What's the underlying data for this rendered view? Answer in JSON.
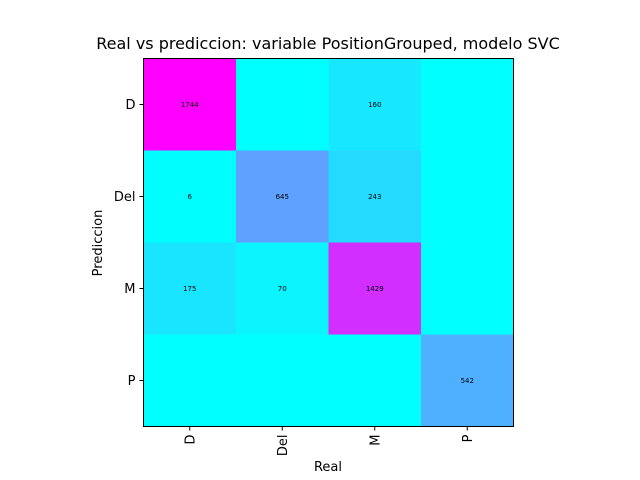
{
  "chart_data": {
    "type": "heatmap",
    "title": "Real vs prediccion: variable PositionGrouped, modelo SVC",
    "xlabel": "Real",
    "ylabel": "Prediccion",
    "x_categories": [
      "D",
      "Del",
      "M",
      "P"
    ],
    "y_categories": [
      "D",
      "Del",
      "M",
      "P"
    ],
    "colormap": "cool",
    "colors": {
      "low": "#00ffff",
      "high": "#ff00ff"
    },
    "matrix": [
      [
        1744,
        0,
        160,
        0
      ],
      [
        6,
        645,
        243,
        0
      ],
      [
        175,
        70,
        1429,
        0
      ],
      [
        0,
        0,
        0,
        542
      ]
    ],
    "cell_labels": [
      [
        "1744",
        "",
        "160",
        ""
      ],
      [
        "6",
        "645",
        "243",
        ""
      ],
      [
        "175",
        "70",
        "1429",
        ""
      ],
      [
        "",
        "",
        "",
        "542"
      ]
    ],
    "value_range": [
      0,
      1744
    ],
    "grid": false
  }
}
